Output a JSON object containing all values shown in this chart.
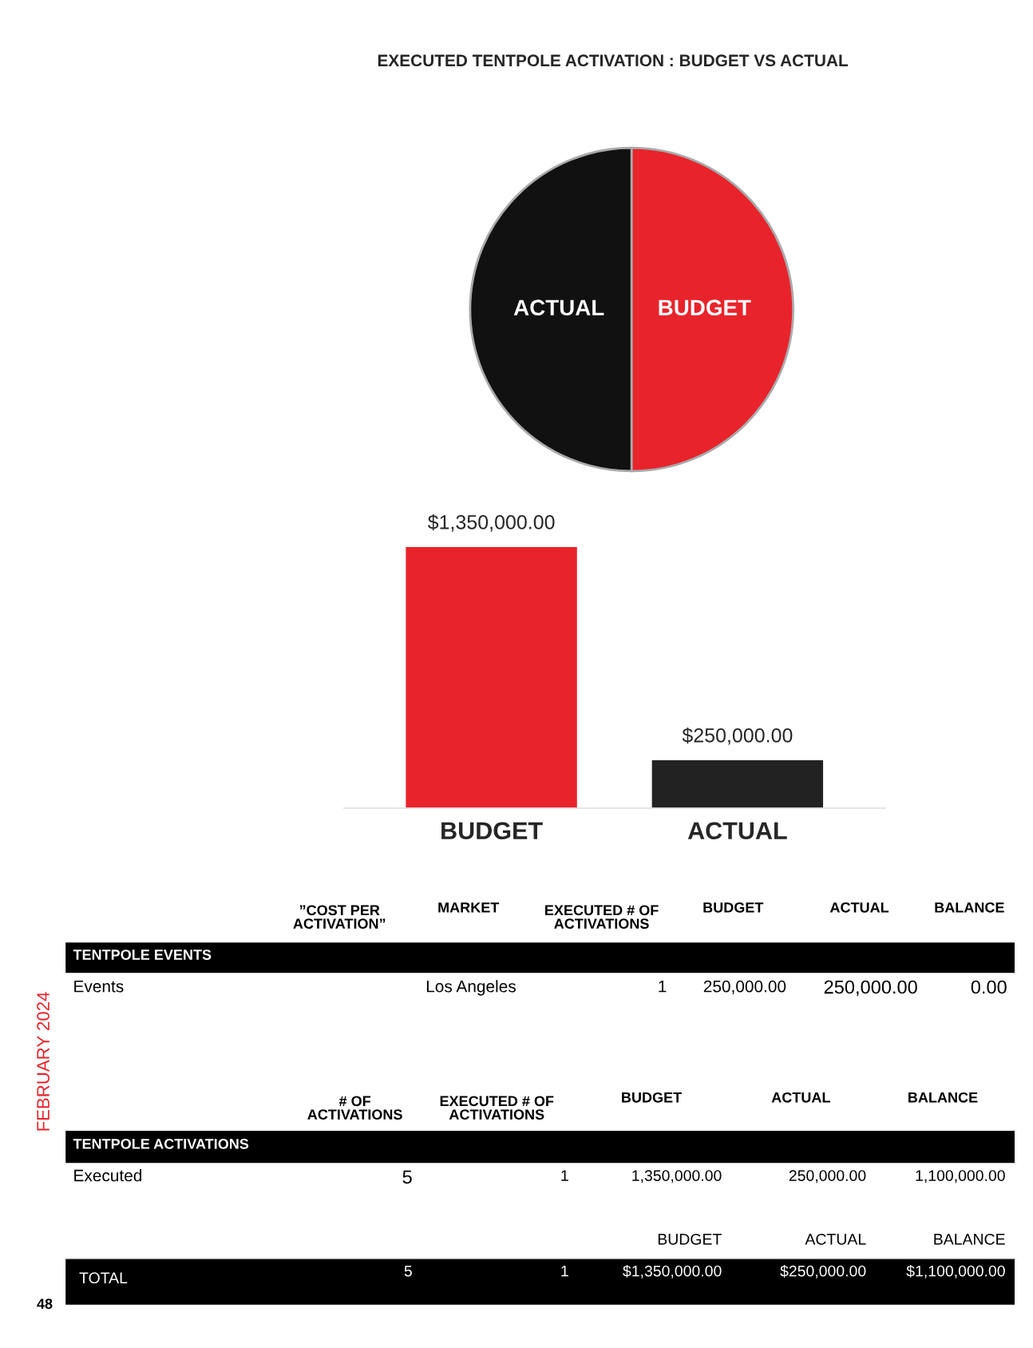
{
  "chart_data": [
    {
      "type": "pie",
      "title": "EXECUTED TENTPOLE ACTIVATION : BUDGET VS ACTUAL",
      "categories": [
        "ACTUAL",
        "BUDGET"
      ],
      "values": [
        50,
        50
      ],
      "colors": [
        "#111111",
        "#e8232b"
      ]
    },
    {
      "type": "bar",
      "categories": [
        "BUDGET",
        "ACTUAL"
      ],
      "values": [
        1350000,
        250000
      ],
      "colors": [
        "#e8232b",
        "#222222"
      ],
      "value_labels": [
        "$1,350,000.00",
        "$250,000.00"
      ]
    },
    {
      "type": "other",
      "annotations": [
        "”COST PER\nACTIVATION”",
        "MARKET",
        "EXECUTED # OF\nACTIVATIONS",
        "BUDGET",
        "ACTUAL",
        "BALANCE",
        "TENTPOLE EVENTS",
        "Events",
        "Los Angeles",
        "1",
        "250,000.00",
        "250,000.00",
        "0.00",
        "# OF\nACTIVATIONS",
        "EXECUTED # OF\nACTIVATIONS",
        "BUDGET",
        "ACTUAL",
        "BALANCE",
        "TENTPOLE ACTIVATIONS",
        "Executed",
        "5",
        "1",
        "1,350,000.00",
        "250,000.00",
        "1,100,000.00",
        "BUDGET",
        "ACTUAL",
        "BALANCE",
        "TOTAL",
        "5",
        "1",
        "$1,350,000.00",
        "$250,000.00",
        "$1,100,000.00",
        "FEBRUARY 2024",
        "48"
      ]
    }
  ]
}
